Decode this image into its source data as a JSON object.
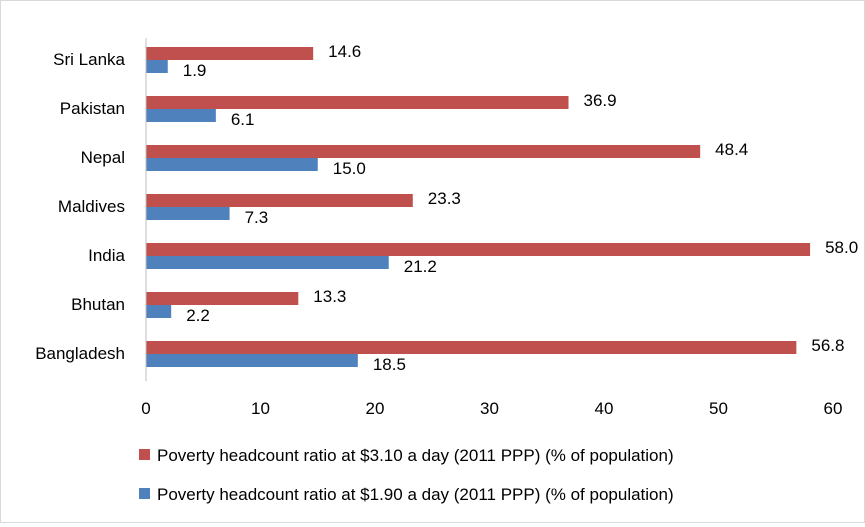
{
  "chart_data": {
    "type": "bar",
    "orientation": "horizontal",
    "categories": [
      "Sri Lanka",
      "Pakistan",
      "Nepal",
      "Maldives",
      "India",
      "Bhutan",
      "Bangladesh"
    ],
    "series": [
      {
        "name": "Poverty headcount ratio at $3.10 a day (2011 PPP) (% of population)",
        "values": [
          14.6,
          36.9,
          48.4,
          23.3,
          58.0,
          13.3,
          56.8
        ],
        "labels": [
          "14.6",
          "36.9",
          "48.4",
          "23.3",
          "58.0",
          "13.3",
          "56.8"
        ],
        "color": "#c0504d"
      },
      {
        "name": "Poverty headcount ratio at $1.90 a day (2011 PPP) (% of population)",
        "values": [
          1.9,
          6.1,
          15.0,
          7.3,
          21.2,
          2.2,
          18.5
        ],
        "labels": [
          "1.9",
          "6.1",
          "15.0",
          "7.3",
          "21.2",
          "2.2",
          "18.5"
        ],
        "color": "#4f81bd"
      }
    ],
    "xlim": [
      0,
      60
    ],
    "xticks": [
      "0",
      "10",
      "20",
      "30",
      "40",
      "50",
      "60"
    ],
    "grid": false,
    "legend_position": "bottom"
  }
}
